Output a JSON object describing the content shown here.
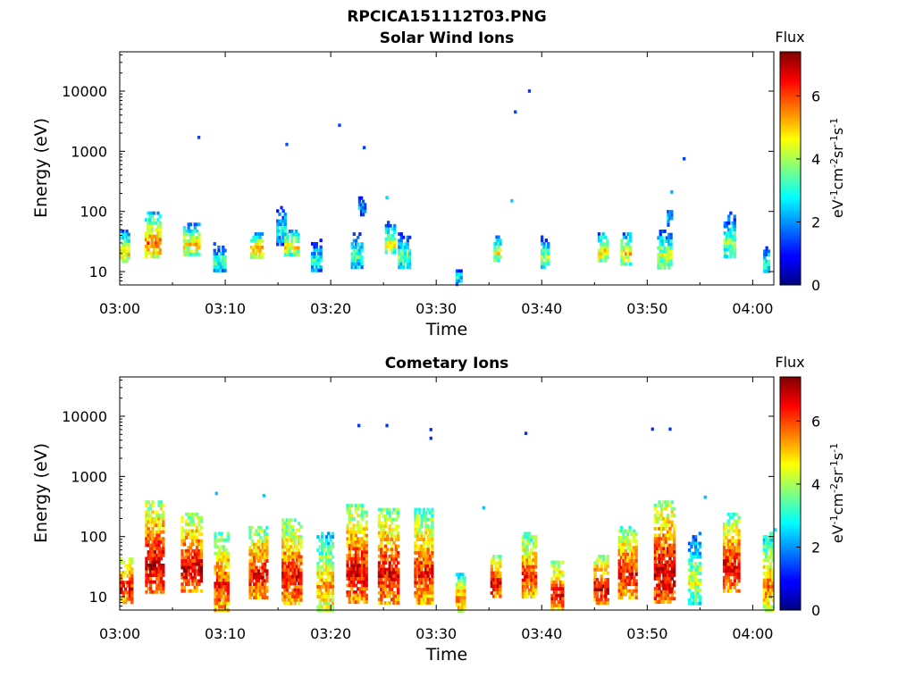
{
  "figure_title": "RPCICA151112T03.PNG",
  "chart_data": [
    {
      "type": "heatmap",
      "title": "Solar Wind Ions",
      "xlabel": "Time",
      "ylabel": "Energy (eV)",
      "x_scale": "time",
      "y_scale": "log",
      "xlim": [
        "03:00",
        "04:02"
      ],
      "ylim": [
        6,
        45000
      ],
      "x_ticks": [
        "03:00",
        "03:10",
        "03:20",
        "03:30",
        "03:40",
        "03:50",
        "04:00"
      ],
      "y_ticks": [
        10,
        100,
        1000,
        10000
      ],
      "y_tick_labels": [
        "10",
        "100",
        "1000",
        "10000"
      ],
      "colorbar": {
        "title": "Flux",
        "label": "eV-1cm-2sr-1s-1",
        "label_parts": [
          {
            "t": "eV",
            "sup": false
          },
          {
            "t": "-1",
            "sup": true
          },
          {
            "t": "cm",
            "sup": false
          },
          {
            "t": "-2",
            "sup": true
          },
          {
            "t": "sr",
            "sup": false
          },
          {
            "t": "-1",
            "sup": true
          },
          {
            "t": "s",
            "sup": false
          },
          {
            "t": "-1",
            "sup": true
          }
        ],
        "range": [
          0,
          7.4
        ],
        "ticks": [
          0,
          2,
          4,
          6
        ],
        "colormap": "jet"
      },
      "clusters": [
        {
          "t": "03:00:30",
          "w": 0.9,
          "emin": 14,
          "emax": 50,
          "peak": 4.8
        },
        {
          "t": "03:03:10",
          "w": 1.5,
          "emin": 18,
          "emax": 100,
          "peak": 5.6
        },
        {
          "t": "03:06:50",
          "w": 1.6,
          "emin": 20,
          "emax": 65,
          "peak": 4.9
        },
        {
          "t": "03:09:30",
          "w": 1.2,
          "emin": 10,
          "emax": 35,
          "peak": 3.3
        },
        {
          "t": "03:13:00",
          "w": 1.2,
          "emin": 18,
          "emax": 45,
          "peak": 5.2
        },
        {
          "t": "03:15:20",
          "w": 0.9,
          "emin": 30,
          "emax": 140,
          "peak": 3.2
        },
        {
          "t": "03:16:20",
          "w": 1.4,
          "emin": 20,
          "emax": 50,
          "peak": 4.9
        },
        {
          "t": "03:18:40",
          "w": 1.0,
          "emin": 10,
          "emax": 40,
          "peak": 3.2
        },
        {
          "t": "03:22:30",
          "w": 1.1,
          "emin": 12,
          "emax": 45,
          "peak": 3.6
        },
        {
          "t": "03:23:00",
          "w": 0.7,
          "emin": 90,
          "emax": 230,
          "peak": 2.3
        },
        {
          "t": "03:25:40",
          "w": 1.0,
          "emin": 20,
          "emax": 70,
          "peak": 4.5
        },
        {
          "t": "03:27:00",
          "w": 1.2,
          "emin": 12,
          "emax": 45,
          "peak": 3.6
        },
        {
          "t": "03:32:10",
          "w": 0.6,
          "emin": 6,
          "emax": 16,
          "peak": 2.6
        },
        {
          "t": "03:35:50",
          "w": 0.7,
          "emin": 15,
          "emax": 40,
          "peak": 4.6
        },
        {
          "t": "03:40:20",
          "w": 0.8,
          "emin": 12,
          "emax": 40,
          "peak": 4.0
        },
        {
          "t": "03:45:50",
          "w": 1.0,
          "emin": 15,
          "emax": 45,
          "peak": 4.9
        },
        {
          "t": "03:48:00",
          "w": 1.0,
          "emin": 14,
          "emax": 45,
          "peak": 5.0
        },
        {
          "t": "03:51:40",
          "w": 1.4,
          "emin": 12,
          "emax": 50,
          "peak": 4.4
        },
        {
          "t": "03:52:10",
          "w": 0.5,
          "emin": 60,
          "emax": 200,
          "peak": 2.4
        },
        {
          "t": "03:57:50",
          "w": 1.1,
          "emin": 18,
          "emax": 100,
          "peak": 3.9
        },
        {
          "t": "04:01:20",
          "w": 0.6,
          "emin": 10,
          "emax": 30,
          "peak": 3.3
        }
      ],
      "sparse_points": [
        {
          "t": "03:07:30",
          "e": 1700,
          "v": 1.4
        },
        {
          "t": "03:15:50",
          "e": 1300,
          "v": 1.5
        },
        {
          "t": "03:20:50",
          "e": 2700,
          "v": 1.4
        },
        {
          "t": "03:23:10",
          "e": 1150,
          "v": 1.4
        },
        {
          "t": "03:37:30",
          "e": 4500,
          "v": 1.4
        },
        {
          "t": "03:38:50",
          "e": 10000,
          "v": 1.3
        },
        {
          "t": "03:53:30",
          "e": 750,
          "v": 1.4
        },
        {
          "t": "03:37:10",
          "e": 150,
          "v": 2.4
        },
        {
          "t": "03:52:20",
          "e": 210,
          "v": 2.2
        },
        {
          "t": "03:25:20",
          "e": 170,
          "v": 2.5
        }
      ]
    },
    {
      "type": "heatmap",
      "title": "Cometary Ions",
      "xlabel": "Time",
      "ylabel": "Energy (eV)",
      "x_scale": "time",
      "y_scale": "log",
      "xlim": [
        "03:00",
        "04:02"
      ],
      "ylim": [
        6,
        45000
      ],
      "x_ticks": [
        "03:00",
        "03:10",
        "03:20",
        "03:30",
        "03:40",
        "03:50",
        "04:00"
      ],
      "y_ticks": [
        10,
        100,
        1000,
        10000
      ],
      "y_tick_labels": [
        "10",
        "100",
        "1000",
        "10000"
      ],
      "colorbar": {
        "title": "Flux",
        "label": "eV-1cm-2sr-1s-1",
        "label_parts": [
          {
            "t": "eV",
            "sup": false
          },
          {
            "t": "-1",
            "sup": true
          },
          {
            "t": "cm",
            "sup": false
          },
          {
            "t": "-2",
            "sup": true
          },
          {
            "t": "sr",
            "sup": false
          },
          {
            "t": "-1",
            "sup": true
          },
          {
            "t": "s",
            "sup": false
          },
          {
            "t": "-1",
            "sup": true
          }
        ],
        "range": [
          0,
          7.4
        ],
        "ticks": [
          0,
          2,
          4,
          6
        ],
        "colormap": "jet"
      },
      "clusters": [
        {
          "t": "03:00:40",
          "w": 1.2,
          "emin": 8,
          "emax": 45,
          "peak": 6.5
        },
        {
          "t": "03:03:20",
          "w": 1.8,
          "emin": 12,
          "emax": 400,
          "peak": 6.9
        },
        {
          "t": "03:06:50",
          "w": 2.0,
          "emin": 12,
          "emax": 250,
          "peak": 6.8
        },
        {
          "t": "03:09:40",
          "w": 1.4,
          "emin": 6,
          "emax": 120,
          "peak": 6.3
        },
        {
          "t": "03:13:10",
          "w": 1.8,
          "emin": 10,
          "emax": 150,
          "peak": 6.6
        },
        {
          "t": "03:16:20",
          "w": 1.9,
          "emin": 8,
          "emax": 200,
          "peak": 6.5
        },
        {
          "t": "03:19:30",
          "w": 1.6,
          "emin": 6,
          "emax": 120,
          "peak": 5.4
        },
        {
          "t": "03:22:30",
          "w": 2.0,
          "emin": 8,
          "emax": 350,
          "peak": 6.7
        },
        {
          "t": "03:25:30",
          "w": 2.0,
          "emin": 8,
          "emax": 300,
          "peak": 6.6
        },
        {
          "t": "03:28:50",
          "w": 1.8,
          "emin": 8,
          "emax": 300,
          "peak": 6.4
        },
        {
          "t": "03:32:20",
          "w": 0.9,
          "emin": 6,
          "emax": 25,
          "peak": 5.8
        },
        {
          "t": "03:35:40",
          "w": 1.0,
          "emin": 10,
          "emax": 50,
          "peak": 6.7
        },
        {
          "t": "03:38:50",
          "w": 1.4,
          "emin": 10,
          "emax": 120,
          "peak": 6.2
        },
        {
          "t": "03:41:30",
          "w": 1.2,
          "emin": 6,
          "emax": 40,
          "peak": 6.5
        },
        {
          "t": "03:45:40",
          "w": 1.4,
          "emin": 8,
          "emax": 50,
          "peak": 6.8
        },
        {
          "t": "03:48:10",
          "w": 1.8,
          "emin": 10,
          "emax": 150,
          "peak": 6.5
        },
        {
          "t": "03:51:40",
          "w": 2.0,
          "emin": 8,
          "emax": 400,
          "peak": 6.9
        },
        {
          "t": "03:54:30",
          "w": 1.2,
          "emin": 8,
          "emax": 120,
          "peak": 4.4
        },
        {
          "t": "03:58:00",
          "w": 1.6,
          "emin": 12,
          "emax": 250,
          "peak": 6.6
        },
        {
          "t": "04:01:30",
          "w": 1.0,
          "emin": 6,
          "emax": 120,
          "peak": 5.6
        }
      ],
      "sparse_points": [
        {
          "t": "03:22:40",
          "e": 7000,
          "v": 1.3
        },
        {
          "t": "03:25:20",
          "e": 7000,
          "v": 1.3
        },
        {
          "t": "03:29:30",
          "e": 6000,
          "v": 1.3
        },
        {
          "t": "03:29:30",
          "e": 4300,
          "v": 1.3
        },
        {
          "t": "03:38:30",
          "e": 5200,
          "v": 1.3
        },
        {
          "t": "03:50:30",
          "e": 6100,
          "v": 1.3
        },
        {
          "t": "03:52:10",
          "e": 6100,
          "v": 1.3
        },
        {
          "t": "03:09:10",
          "e": 520,
          "v": 2.3
        },
        {
          "t": "03:13:40",
          "e": 480,
          "v": 2.4
        },
        {
          "t": "03:34:30",
          "e": 300,
          "v": 2.4
        },
        {
          "t": "03:55:30",
          "e": 450,
          "v": 2.3
        },
        {
          "t": "04:02:10",
          "e": 130,
          "v": 2.6
        }
      ]
    }
  ]
}
